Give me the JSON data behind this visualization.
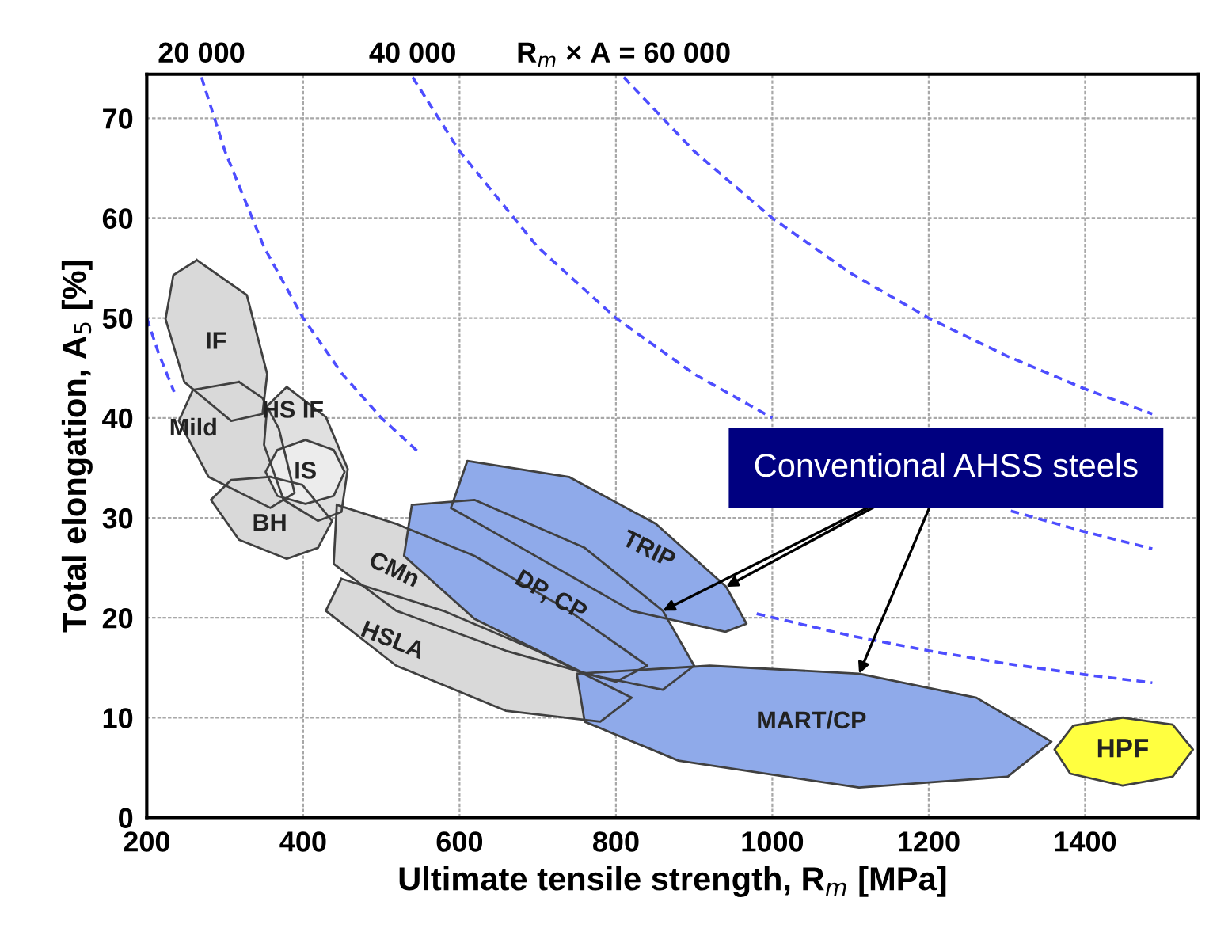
{
  "chart_data": {
    "type": "area",
    "xlabel": "Ultimate tensile strength, R$_{m}$ [MPa]",
    "ylabel": "Total elongation, A$_{5}$ [%]",
    "xlim": [
      200,
      1545
    ],
    "ylim": [
      0,
      74.4
    ],
    "xticks": [
      200,
      400,
      600,
      800,
      1000,
      1200,
      1400
    ],
    "yticks": [
      0,
      10,
      20,
      30,
      40,
      50,
      60,
      70
    ],
    "grid": true,
    "legend": false,
    "marker": "none",
    "annotations": [
      {
        "text": "Conventional AHSS steels",
        "x": 1111,
        "y": 14.4
      }
    ],
    "series": [
      {
        "type": "line",
        "color": "#4d4dff",
        "line_style": "dashed",
        "x": [
          200,
          215,
          235
        ],
        "values": [
          50,
          46.5,
          42.6
        ]
      },
      {
        "name": "20 000",
        "type": "line",
        "color": "#4d4dff",
        "line_style": "dashed",
        "x": [
          270,
          300,
          350,
          400,
          450,
          500,
          550,
          780,
          980,
          1100,
          1200,
          1300,
          1400,
          1486
        ],
        "values": [
          74.1,
          66.7,
          57.1,
          50,
          44.4,
          40,
          36.4,
          null,
          20.4,
          18.2,
          16.7,
          15.4,
          14.3,
          13.5
        ]
      },
      {
        "name": "40 000",
        "type": "line",
        "color": "#4d4dff",
        "line_style": "dashed",
        "x": [
          540,
          600,
          700,
          800,
          900,
          1000,
          1150,
          1305,
          1400,
          1486
        ],
        "values": [
          74.1,
          66.7,
          57.1,
          50,
          44.4,
          40,
          null,
          30.7,
          28.6,
          26.9
        ]
      },
      {
        "name": "R$_{m}$ × A = 60 000",
        "type": "line",
        "color": "#4d4dff",
        "line_style": "dashed",
        "x": [
          810,
          900,
          1000,
          1100,
          1200,
          1300,
          1400,
          1486
        ],
        "values": [
          74.1,
          66.7,
          60,
          54.5,
          50,
          46.2,
          42.9,
          40.4
        ]
      },
      {
        "name": "Mild",
        "color": "#d9d9d9",
        "x": [
          318,
          348,
          369,
          389,
          358,
          279,
          241,
          259
        ],
        "values": [
          43.6,
          42.0,
          38.9,
          32.5,
          31.0,
          34.1,
          39.7,
          42.8
        ]
      },
      {
        "name": "BH",
        "color": "#d9d9d9",
        "x": [
          358,
          399,
          437,
          419,
          379,
          318,
          282,
          308
        ],
        "values": [
          34.1,
          33.3,
          29.7,
          27.0,
          25.9,
          27.8,
          31.8,
          33.8
        ]
      },
      {
        "name": "HS IF",
        "color": "#e0e0e0",
        "x": [
          379,
          429,
          457,
          449,
          419,
          375,
          350,
          354
        ],
        "values": [
          43.1,
          40.1,
          34.9,
          30.6,
          29.7,
          31.8,
          37.3,
          41.2
        ]
      },
      {
        "name": "IS",
        "color": "#ececec",
        "x": [
          403,
          439,
          453,
          439,
          403,
          367,
          352,
          367
        ],
        "values": [
          37.8,
          36.8,
          34.6,
          32.2,
          31.4,
          32.2,
          34.6,
          36.8
        ]
      },
      {
        "name": "IF",
        "color": "#d9d9d9",
        "x": [
          264,
          328,
          354,
          348,
          308,
          248,
          224,
          234
        ],
        "values": [
          55.8,
          52.3,
          44.4,
          40.4,
          39.7,
          43.6,
          49.9,
          54.3
        ]
      },
      {
        "name": "HSLA",
        "color": "#d9d9d9",
        "x": [
          449,
          579,
          699,
          820,
          780,
          659,
          519,
          429
        ],
        "values": [
          23.9,
          20.7,
          16.7,
          12.0,
          9.6,
          10.7,
          15.2,
          20.7
        ]
      },
      {
        "name": "CMn",
        "color": "#d9d9d9",
        "x": [
          443,
          519,
          619,
          740,
          840,
          800,
          659,
          519,
          439
        ],
        "values": [
          31.3,
          29.4,
          26.2,
          20.7,
          15.2,
          13.6,
          16.7,
          20.7,
          25.4
        ]
      },
      {
        "name": "MART/CP",
        "color": "#8faaea",
        "x": [
          750,
          920,
          1111,
          1261,
          1357,
          1301,
          1111,
          880,
          760
        ],
        "values": [
          14.4,
          15.2,
          14.4,
          12.0,
          7.6,
          4.1,
          3.0,
          5.7,
          9.6
        ]
      },
      {
        "name": "TRIP",
        "color": "#8faaea",
        "x": [
          589,
          610,
          740,
          851,
          941,
          967,
          940,
          820,
          679
        ],
        "values": [
          31.0,
          35.7,
          34.1,
          29.4,
          23.1,
          19.4,
          18.6,
          20.7,
          27.0
        ]
      },
      {
        "name": "DP, CP",
        "color": "#8faaea",
        "x": [
          539,
          619,
          760,
          860,
          900,
          860,
          760,
          619,
          529
        ],
        "values": [
          31.3,
          31.8,
          27.0,
          20.7,
          15.2,
          12.8,
          14.4,
          19.9,
          26.2
        ]
      },
      {
        "name": "HPF",
        "color": "#ffff40",
        "x": [
          1448,
          1512,
          1538,
          1512,
          1448,
          1381,
          1361,
          1385
        ],
        "values": [
          10.0,
          9.3,
          6.8,
          4.1,
          3.2,
          4.4,
          6.8,
          9.2
        ]
      }
    ]
  }
}
